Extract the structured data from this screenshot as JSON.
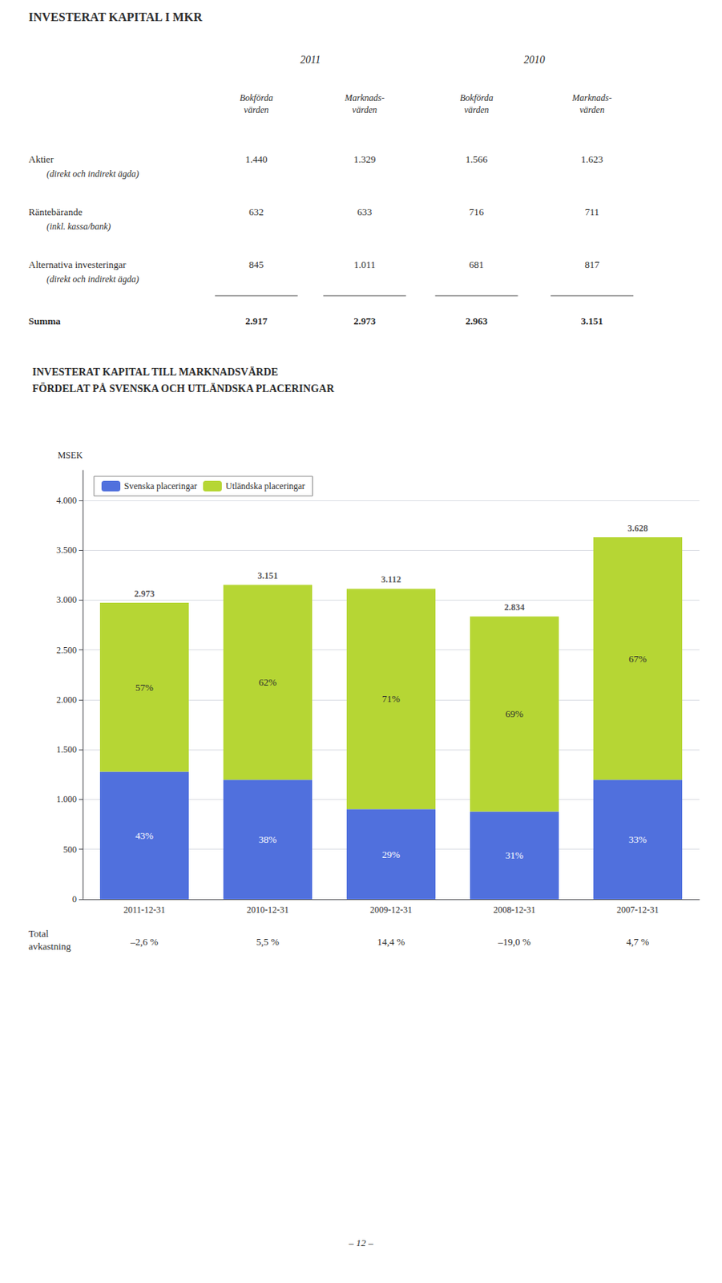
{
  "chart_data": {
    "type": "bar",
    "stacked": true,
    "title": "INVESTERAT KAPITAL TILL MARKNADSVÄRDE\nFÖRDELAT PÅ SVENSKA OCH UTLÄNDSKA PLACERINGAR",
    "ylabel": "MSEK",
    "categories": [
      "2011-12-31",
      "2010-12-31",
      "2009-12-31",
      "2008-12-31",
      "2007-12-31"
    ],
    "series": [
      {
        "name": "Svenska placeringar",
        "values": [
          1278.39,
          1197.38,
          902.48,
          878.54,
          1197.24
        ],
        "shares": [
          43,
          38,
          29,
          31,
          33
        ],
        "share_labels": [
          "43%",
          "38%",
          "29%",
          "31%",
          "33%"
        ]
      },
      {
        "name": "Utländska placeringar",
        "values": [
          1694.61,
          1953.62,
          2209.52,
          1955.46,
          2430.76
        ],
        "shares": [
          57,
          62,
          71,
          69,
          67
        ],
        "share_labels": [
          "57%",
          "62%",
          "71%",
          "69%",
          "67%"
        ]
      }
    ],
    "totals": [
      2973,
      3151,
      3112,
      2834,
      3628
    ],
    "total_labels": [
      "2.973",
      "3.151",
      "3.112",
      "2.834",
      "3.628"
    ],
    "ylim": [
      0,
      4300
    ],
    "yticks": [
      0,
      500,
      {
        "value": 1000,
        "label": "1.000"
      },
      {
        "value": 1500,
        "label": "1.500"
      },
      {
        "value": 2000,
        "label": "2.000"
      },
      {
        "value": 2500,
        "label": "2.500"
      },
      {
        "value": 3000,
        "label": "3.000"
      },
      {
        "value": 3500,
        "label": "3.500"
      },
      {
        "value": 4000,
        "label": "4.000"
      }
    ],
    "grid": true,
    "legend": "upper left",
    "row_label": "Total\navkastning",
    "row_values": [
      "–2,6 %",
      "5,5 %",
      "14,4 %",
      "–19,0 %",
      "4,7 %"
    ]
  },
  "table": {
    "title": "INVESTERAT KAPITAL I MKR",
    "column_groups": [
      "2011",
      "2010"
    ],
    "column_headers": [
      "Bokförda\nvärden",
      "Marknads-\nvärden",
      "Bokförda\nvärden",
      "Marknads-\nvärden"
    ],
    "rows": [
      {
        "label": "Aktier",
        "sublabel": "(direkt och indirekt ägda)",
        "values": [
          "1.440",
          "1.329",
          "1.566",
          "1.623"
        ]
      },
      {
        "label": "Räntebärande",
        "sublabel": "(inkl. kassa/bank)",
        "values": [
          "632",
          "633",
          "716",
          "711"
        ]
      },
      {
        "label": "Alternativa investeringar",
        "sublabel": "(direkt och indirekt ägda)",
        "values": [
          "845",
          "1.011",
          "681",
          "817"
        ]
      },
      {
        "label": "Summa",
        "values": [
          "2.917",
          "2.973",
          "2.963",
          "3.151"
        ]
      }
    ]
  },
  "page_number": "– 12 –"
}
